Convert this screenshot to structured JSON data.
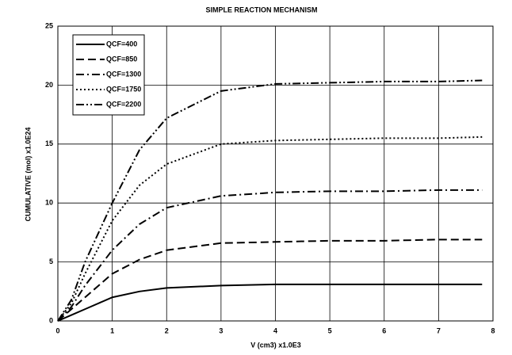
{
  "chart_data": {
    "type": "line",
    "title": "SIMPLE REACTION MECHANISM",
    "x_label": "V (cm3)  x1.0E3",
    "y_label": "CUMULATIVE (mol)  x1.0E24",
    "x": [
      0,
      0.25,
      0.5,
      1,
      1.5,
      2,
      3,
      4,
      5,
      6,
      7,
      7.8
    ],
    "series": [
      {
        "name": "QCF=400",
        "color": "#000000",
        "style": "solid",
        "values": [
          0,
          0.5,
          1.0,
          2.0,
          2.5,
          2.8,
          3.0,
          3.1,
          3.1,
          3.1,
          3.1,
          3.1
        ]
      },
      {
        "name": "QCF=850",
        "color": "#000000",
        "style": "dashed",
        "values": [
          0,
          1.0,
          2.0,
          4.0,
          5.2,
          6.0,
          6.6,
          6.7,
          6.8,
          6.8,
          6.9,
          6.9
        ]
      },
      {
        "name": "QCF=1300",
        "color": "#000000",
        "style": "dashdot",
        "values": [
          0,
          1.2,
          3.0,
          6.0,
          8.2,
          9.6,
          10.6,
          10.9,
          11.0,
          11.0,
          11.1,
          11.1
        ]
      },
      {
        "name": "QCF=1750",
        "color": "#000000",
        "style": "dotted",
        "values": [
          0,
          1.5,
          4.0,
          8.5,
          11.5,
          13.3,
          15.0,
          15.3,
          15.4,
          15.5,
          15.5,
          15.6
        ]
      },
      {
        "name": "QCF=2200",
        "color": "#000000",
        "style": "dashdotdot",
        "values": [
          0,
          1.8,
          5.0,
          10.0,
          14.5,
          17.2,
          19.5,
          20.1,
          20.2,
          20.3,
          20.3,
          20.4
        ]
      }
    ],
    "xlim": [
      0,
      8
    ],
    "xticks": [
      0,
      1,
      2,
      3,
      4,
      5,
      6,
      7,
      8
    ],
    "ylim": [
      0,
      25
    ],
    "yticks": [
      0,
      5,
      10,
      15,
      20,
      25
    ],
    "grid": true,
    "legend": "upper left"
  }
}
